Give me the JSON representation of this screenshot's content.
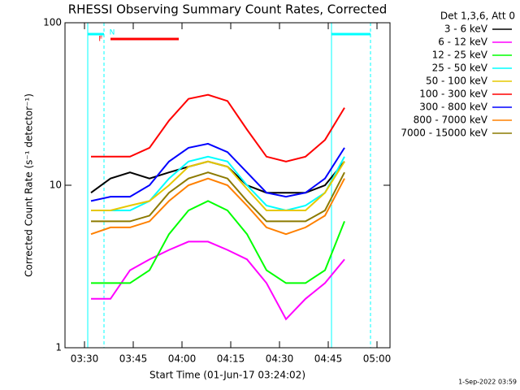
{
  "chart_data": {
    "type": "line",
    "title": "RHESSI Observing Summary Count Rates, Corrected",
    "x_label": "Start Time (01-Jun-17 03:24:02)",
    "y_label": "Corrected Count Rate (s⁻¹ detector⁻¹)",
    "legend_title": "Det 1,3,6, Att 0",
    "footer": "1-Sep-2022 03:59",
    "log_y": true,
    "xlim": [
      "03:24",
      "05:04"
    ],
    "xticks": [
      "03:30",
      "03:45",
      "04:00",
      "04:15",
      "04:30",
      "04:45",
      "05:00"
    ],
    "ylim": [
      1,
      100
    ],
    "yticks": [
      1,
      10,
      100
    ],
    "legend": "outside-right",
    "night": [
      {
        "start": "03:31",
        "end": "03:36"
      },
      {
        "start": "04:46",
        "end": "04:58"
      }
    ],
    "night_label": "N",
    "night_color": "#00ffff",
    "flare": {
      "label": "F",
      "start": "03:38",
      "end": "03:59",
      "color": "#ff0000"
    },
    "x": [
      "03:32",
      "03:38",
      "03:44",
      "03:50",
      "03:56",
      "04:02",
      "04:08",
      "04:14",
      "04:20",
      "04:26",
      "04:32",
      "04:38",
      "04:44",
      "04:50"
    ],
    "series": [
      {
        "name": "3 - 6 keV",
        "color": "#000000",
        "values": [
          9,
          11,
          12,
          11,
          12,
          13,
          14,
          13,
          10,
          9,
          9,
          9,
          10,
          14
        ]
      },
      {
        "name": "6 - 12 keV",
        "color": "#ff00ff",
        "values": [
          2,
          2,
          3,
          3.5,
          4,
          4.5,
          4.5,
          4,
          3.5,
          2.5,
          1.5,
          2,
          2.5,
          3.5
        ]
      },
      {
        "name": "12 - 25 keV",
        "color": "#00ff00",
        "values": [
          2.5,
          2.5,
          2.5,
          3,
          5,
          7,
          8,
          7,
          5,
          3,
          2.5,
          2.5,
          3,
          6
        ]
      },
      {
        "name": "25 - 50 keV",
        "color": "#00ffff",
        "values": [
          7,
          7,
          7,
          8,
          11,
          14,
          15,
          14,
          10,
          7.5,
          7,
          7.5,
          9,
          15
        ]
      },
      {
        "name": "50 - 100 keV",
        "color": "#e6c800",
        "values": [
          7,
          7,
          7.5,
          8,
          10,
          13,
          14,
          13,
          9.5,
          7,
          7,
          7,
          9,
          14
        ]
      },
      {
        "name": "100 - 300 keV",
        "color": "#ff0000",
        "values": [
          15,
          15,
          15,
          17,
          25,
          34,
          36,
          33,
          22,
          15,
          14,
          15,
          19,
          30
        ]
      },
      {
        "name": "300 - 800 keV",
        "color": "#0000ff",
        "values": [
          8,
          8.5,
          8.5,
          10,
          14,
          17,
          18,
          16,
          12,
          9,
          8.5,
          9,
          11,
          17
        ]
      },
      {
        "name": "800 - 7000 keV",
        "color": "#ff8000",
        "values": [
          5,
          5.5,
          5.5,
          6,
          8,
          10,
          11,
          10,
          7.5,
          5.5,
          5,
          5.5,
          6.5,
          11
        ]
      },
      {
        "name": "7000 - 15000 keV",
        "color": "#8c7a00",
        "values": [
          6,
          6,
          6,
          6.5,
          9,
          11,
          12,
          11,
          8,
          6,
          6,
          6,
          7,
          12
        ]
      }
    ]
  }
}
